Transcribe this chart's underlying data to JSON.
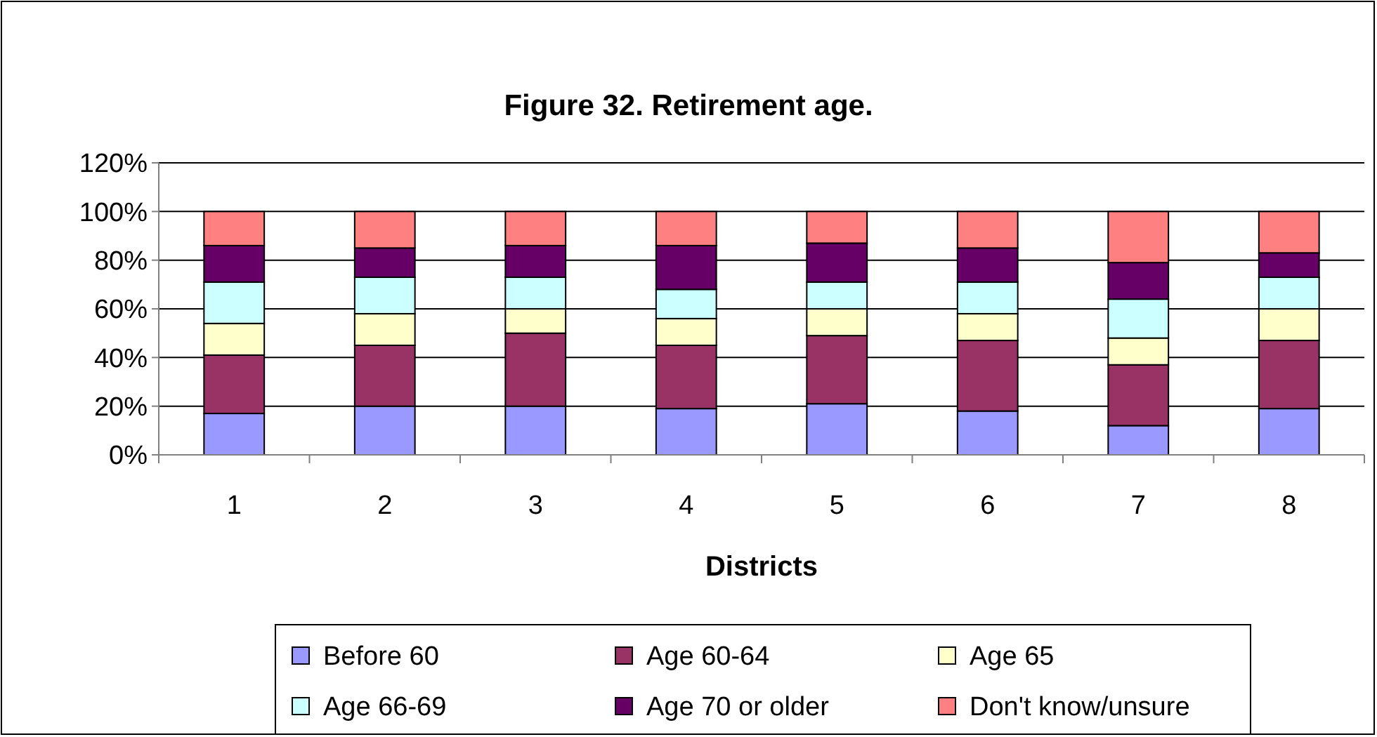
{
  "chart_data": {
    "type": "bar",
    "title": "Figure 32. Retirement age.",
    "xlabel": "Districts",
    "categories": [
      "1",
      "2",
      "3",
      "4",
      "5",
      "6",
      "7",
      "8"
    ],
    "stacked": true,
    "series": [
      {
        "name": "Before 60",
        "color": "#9999ff",
        "values": [
          17,
          20,
          20,
          19,
          21,
          18,
          12,
          19
        ]
      },
      {
        "name": "Age 60-64",
        "color": "#993366",
        "values": [
          24,
          25,
          30,
          26,
          28,
          29,
          25,
          28
        ]
      },
      {
        "name": "Age 65",
        "color": "#ffffcc",
        "values": [
          13,
          13,
          10,
          11,
          11,
          11,
          11,
          13
        ]
      },
      {
        "name": "Age 66-69",
        "color": "#ccffff",
        "values": [
          17,
          15,
          13,
          12,
          11,
          13,
          16,
          13
        ]
      },
      {
        "name": "Age 70 or older",
        "color": "#660066",
        "values": [
          15,
          12,
          13,
          18,
          16,
          14,
          15,
          10
        ]
      },
      {
        "name": "Don't know/unsure",
        "color": "#ff8080",
        "values": [
          14,
          15,
          14,
          14,
          13,
          15,
          21,
          17
        ]
      }
    ],
    "ylim": [
      0,
      120
    ],
    "yticks": [
      {
        "value": 0,
        "label": "0%"
      },
      {
        "value": 20,
        "label": "20%"
      },
      {
        "value": 40,
        "label": "40%"
      },
      {
        "value": 60,
        "label": "60%"
      },
      {
        "value": 80,
        "label": "80%"
      },
      {
        "value": 100,
        "label": "100%"
      },
      {
        "value": 120,
        "label": "120%"
      }
    ],
    "grid": "y",
    "legend": "bottom"
  }
}
